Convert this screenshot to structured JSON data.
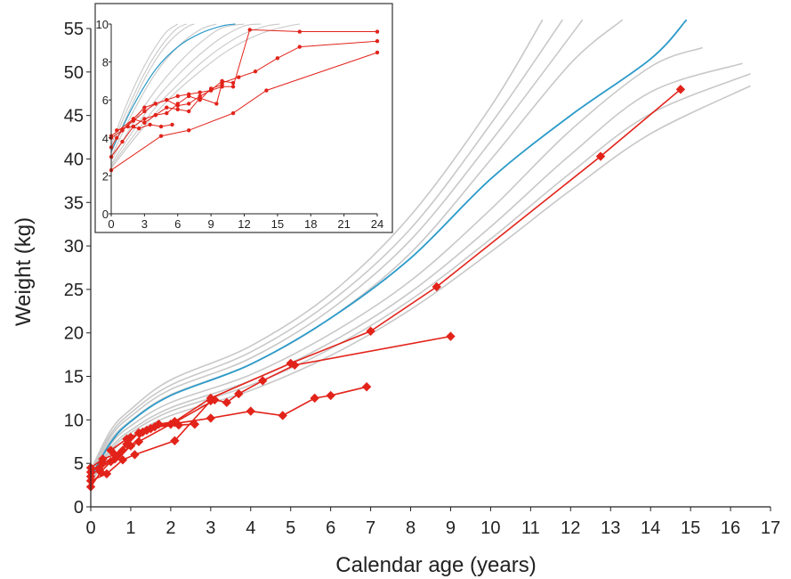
{
  "chart_data": [
    {
      "type": "line",
      "xlabel": "Calendar age (years)",
      "ylabel": "Weight (kg)",
      "xlim": [
        0,
        17
      ],
      "ylim": [
        0,
        55
      ],
      "xticks": [
        0,
        1,
        2,
        3,
        4,
        5,
        6,
        7,
        8,
        9,
        10,
        11,
        12,
        13,
        14,
        15,
        16,
        17
      ],
      "yticks": [
        0,
        5,
        10,
        15,
        20,
        25,
        30,
        35,
        40,
        45,
        50,
        55
      ],
      "grid": false,
      "colors": {
        "reference": "#c8c8c8",
        "median": "#2b9ac9",
        "patient": "#e2231a"
      },
      "reference_curves": [
        {
          "x": [
            0,
            0.5,
            1,
            2,
            4,
            6,
            8,
            10,
            11.3
          ],
          "y": [
            4.2,
            8.8,
            11.2,
            14.6,
            18.5,
            24.5,
            33.5,
            46.0,
            56.0
          ]
        },
        {
          "x": [
            0,
            0.5,
            1,
            2,
            4,
            6,
            8,
            10,
            11.8
          ],
          "y": [
            4.0,
            8.4,
            10.8,
            14.0,
            17.8,
            23.6,
            32.0,
            44.0,
            56.0
          ]
        },
        {
          "x": [
            0,
            0.5,
            1,
            2,
            4,
            6,
            8,
            10,
            12.3
          ],
          "y": [
            3.8,
            8.1,
            10.4,
            13.5,
            17.1,
            22.7,
            30.7,
            42.0,
            56.0
          ]
        },
        {
          "x": [
            0,
            0.5,
            1,
            2,
            4,
            6,
            8,
            10,
            12,
            13.3
          ],
          "y": [
            3.6,
            7.7,
            9.9,
            12.9,
            16.4,
            21.7,
            29.2,
            39.9,
            51.0,
            56.0
          ]
        },
        {
          "x": [
            0,
            0.5,
            1,
            2,
            4,
            6,
            8,
            10,
            12,
            14,
            15.3
          ],
          "y": [
            3.3,
            7.2,
            9.3,
            12.0,
            15.2,
            19.9,
            26.0,
            34.2,
            43.3,
            50.6,
            52.8
          ]
        },
        {
          "x": [
            0,
            0.5,
            1,
            2,
            4,
            6,
            8,
            10,
            12,
            14,
            16.3
          ],
          "y": [
            3.1,
            6.8,
            8.8,
            11.4,
            14.5,
            18.9,
            24.7,
            32.2,
            40.5,
            47.7,
            51.0
          ]
        },
        {
          "x": [
            0,
            0.5,
            1,
            2,
            4,
            6,
            8,
            10,
            12,
            14,
            16.5
          ],
          "y": [
            2.9,
            6.5,
            8.5,
            11.0,
            14.0,
            18.2,
            23.8,
            30.8,
            38.4,
            45.2,
            49.8
          ]
        },
        {
          "x": [
            0,
            0.5,
            1,
            2,
            4,
            6,
            8,
            10,
            12,
            14,
            16.5
          ],
          "y": [
            2.7,
            6.2,
            8.1,
            10.5,
            13.4,
            17.4,
            22.7,
            29.3,
            36.4,
            42.9,
            48.4
          ]
        }
      ],
      "median_curve": {
        "x": [
          0,
          0.5,
          1,
          2,
          4,
          6,
          8,
          10,
          12,
          14,
          14.9
        ],
        "y": [
          3.4,
          7.4,
          9.8,
          12.8,
          16.4,
          21.7,
          28.6,
          37.7,
          45.0,
          51.5,
          56.0
        ]
      },
      "patients": [
        {
          "x": [
            0,
            0.3,
            0.7,
            1.2,
            2.0,
            3.0,
            4.0,
            4.8,
            5.6,
            6.0,
            6.9
          ],
          "y": [
            4.0,
            5.0,
            6.0,
            7.5,
            9.5,
            10.2,
            11.0,
            10.5,
            12.5,
            12.8,
            13.8
          ]
        },
        {
          "x": [
            0,
            0.25,
            0.5,
            0.8,
            1.0,
            1.5,
            2.1,
            3.0,
            5.0,
            7.0,
            8.65,
            12.75,
            14.75
          ],
          "y": [
            2.3,
            4.0,
            5.2,
            6.5,
            8.0,
            9.0,
            9.8,
            12.5,
            16.5,
            20.2,
            25.3,
            40.3,
            48.0
          ]
        },
        {
          "x": [
            0,
            0.2,
            0.6,
            1.0,
            1.4,
            2.1,
            3.1,
            3.4,
            3.7,
            4.3,
            5.1,
            9.0
          ],
          "y": [
            3.5,
            4.4,
            5.5,
            7.0,
            8.8,
            9.7,
            12.3,
            12.0,
            13.0,
            14.5,
            16.3,
            19.6
          ]
        },
        {
          "x": [
            0,
            0.4,
            0.8,
            1.1,
            2.1,
            3.0
          ],
          "y": [
            3.0,
            3.8,
            5.4,
            6.0,
            7.6,
            12.2
          ]
        },
        {
          "x": [
            0,
            0.3,
            0.6,
            0.9,
            1.2,
            1.6,
            2.2,
            2.6
          ],
          "y": [
            4.5,
            5.5,
            6.0,
            7.2,
            8.5,
            9.2,
            9.4,
            9.5
          ]
        },
        {
          "x": [
            0.5,
            0.9,
            1.3,
            1.7,
            2.1
          ],
          "y": [
            6.5,
            7.8,
            8.6,
            9.5,
            9.8
          ]
        }
      ]
    },
    {
      "type": "line",
      "xlim": [
        0,
        24
      ],
      "ylim": [
        0,
        10
      ],
      "xticks": [
        0,
        3,
        6,
        9,
        12,
        15,
        18,
        21,
        24
      ],
      "yticks": [
        0,
        2,
        4,
        6,
        8,
        10
      ],
      "colors": {
        "reference": "#c8c8c8",
        "median": "#2b9ac9",
        "patient": "#e2231a"
      },
      "reference_curves": [
        {
          "x": [
            0,
            1,
            2,
            3,
            4,
            5,
            6
          ],
          "y": [
            3.6,
            5.2,
            6.6,
            7.8,
            8.8,
            9.6,
            10.0
          ]
        },
        {
          "x": [
            0,
            1,
            2,
            3,
            4,
            5,
            6,
            6.8
          ],
          "y": [
            3.4,
            4.9,
            6.2,
            7.4,
            8.4,
            9.2,
            9.8,
            10.0
          ]
        },
        {
          "x": [
            0,
            1,
            2,
            3,
            4,
            5,
            6,
            7,
            7.5
          ],
          "y": [
            3.2,
            4.6,
            5.9,
            7.1,
            8.1,
            8.9,
            9.5,
            9.9,
            10.0
          ]
        },
        {
          "x": [
            0,
            2,
            4,
            6,
            8,
            9.5
          ],
          "y": [
            3.0,
            5.4,
            7.4,
            8.8,
            9.7,
            10.0
          ]
        },
        {
          "x": [
            0,
            2,
            4,
            6,
            8,
            10,
            12
          ],
          "y": [
            2.8,
            4.8,
            6.5,
            7.9,
            9.0,
            9.8,
            10.0
          ]
        },
        {
          "x": [
            0,
            2,
            4,
            6,
            8,
            10,
            12,
            13.5
          ],
          "y": [
            2.6,
            4.4,
            6.0,
            7.3,
            8.4,
            9.3,
            9.9,
            10.0
          ]
        },
        {
          "x": [
            0,
            2,
            4,
            6,
            8,
            10,
            12,
            14,
            15.2
          ],
          "y": [
            2.5,
            4.1,
            5.6,
            6.8,
            7.9,
            8.8,
            9.5,
            9.9,
            10.0
          ]
        },
        {
          "x": [
            0,
            2,
            4,
            6,
            8,
            10,
            12,
            14,
            16,
            17
          ],
          "y": [
            2.4,
            3.9,
            5.3,
            6.5,
            7.5,
            8.4,
            9.1,
            9.6,
            9.9,
            10.0
          ]
        }
      ],
      "median_curve": {
        "x": [
          0,
          2,
          4,
          6,
          8,
          10,
          11.2
        ],
        "y": [
          3.3,
          5.7,
          7.6,
          8.8,
          9.5,
          9.9,
          10.0
        ]
      },
      "patients": [
        {
          "x": [
            0,
            0.5,
            1,
            2,
            3,
            4,
            5,
            6,
            7,
            8,
            9,
            10,
            11,
            12.5,
            17,
            24
          ],
          "y": [
            3.5,
            4.0,
            4.4,
            4.9,
            5.4,
            5.8,
            6.0,
            6.2,
            6.3,
            6.4,
            6.5,
            6.7,
            6.7,
            9.7,
            9.6,
            9.6
          ]
        },
        {
          "x": [
            0,
            1,
            2,
            3,
            4,
            5,
            6,
            7,
            8,
            9,
            10,
            11
          ],
          "y": [
            4.0,
            4.4,
            5.0,
            5.6,
            5.8,
            6.0,
            5.7,
            5.8,
            6.2,
            6.5,
            7.0,
            6.9
          ]
        },
        {
          "x": [
            0,
            4.5,
            7,
            11,
            14,
            24
          ],
          "y": [
            2.3,
            4.1,
            4.4,
            5.3,
            6.5,
            8.5
          ]
        },
        {
          "x": [
            0,
            2,
            3,
            4,
            5,
            6,
            7,
            8,
            9.5,
            10,
            11.5,
            13,
            15,
            17,
            24
          ],
          "y": [
            4.1,
            5.0,
            4.8,
            5.2,
            5.6,
            5.5,
            5.4,
            6.1,
            5.8,
            6.9,
            7.2,
            7.5,
            8.2,
            8.8,
            9.1
          ]
        },
        {
          "x": [
            0,
            1,
            2,
            3,
            4,
            5,
            6,
            7,
            8,
            9,
            10
          ],
          "y": [
            3.0,
            3.8,
            4.6,
            5.0,
            5.2,
            5.3,
            5.8,
            6.2,
            6.0,
            6.6,
            6.8
          ]
        },
        {
          "x": [
            0.5,
            1.5,
            2.5,
            3.5,
            4.5,
            5.5
          ],
          "y": [
            4.4,
            4.6,
            4.5,
            4.7,
            4.6,
            4.7
          ]
        }
      ]
    }
  ]
}
